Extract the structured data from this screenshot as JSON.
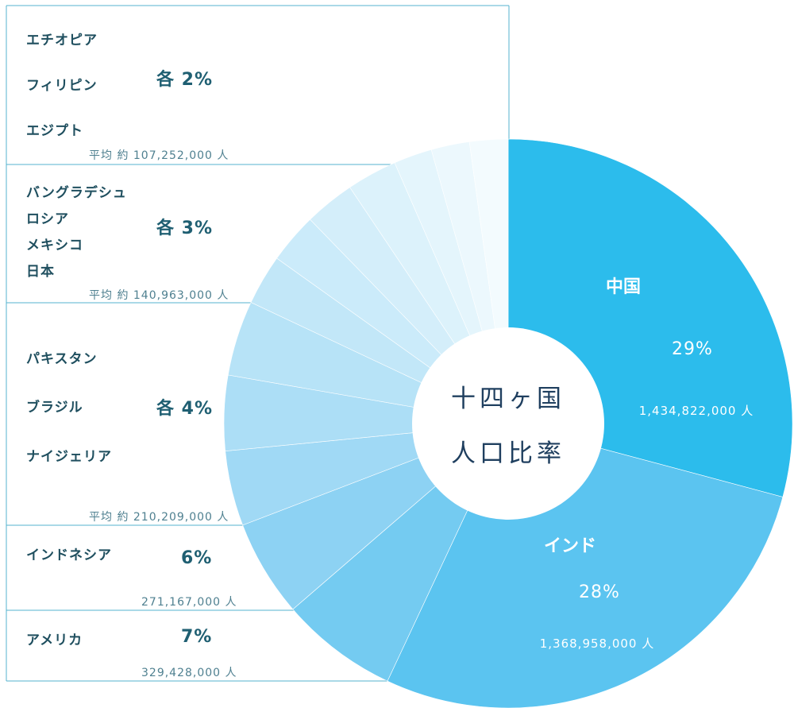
{
  "center_title": [
    "十四ヶ国",
    "人口比率"
  ],
  "groups": [
    {
      "countries": [
        "エチオピア",
        "フィリピン",
        "エジプト"
      ],
      "pct_label": "各 2%",
      "sub_label": "平均 約 107,252,000 人"
    },
    {
      "countries": [
        "バングラデシュ",
        "ロシア",
        "メキシコ",
        "日本"
      ],
      "pct_label": "各 3%",
      "sub_label": "平均 約 140,963,000 人"
    },
    {
      "countries": [
        "パキスタン",
        "ブラジル",
        "ナイジェリア"
      ],
      "pct_label": "各 4%",
      "sub_label": "平均 約 210,209,000 人"
    },
    {
      "countries": [
        "インドネシア"
      ],
      "pct_label": "6%",
      "sub_label": "271,167,000 人"
    },
    {
      "countries": [
        "アメリカ"
      ],
      "pct_label": "7%",
      "sub_label": "329,428,000 人"
    }
  ],
  "slice_labels": [
    {
      "name": "中国",
      "pct": "29%",
      "pop": "1,434,822,000 人"
    },
    {
      "name": "インド",
      "pct": "28%",
      "pop": "1,368,958,000 人"
    }
  ],
  "chart_data": {
    "type": "pie",
    "donut": true,
    "categories": [
      "中国",
      "インド",
      "アメリカ",
      "インドネシア",
      "パキスタン",
      "ブラジル",
      "ナイジェリア",
      "バングラデシュ",
      "ロシア",
      "メキシコ",
      "日本",
      "エチオピア",
      "フィリピン",
      "エジプト"
    ],
    "values": [
      1434822000,
      1368958000,
      329428000,
      271167000,
      210209000,
      210209000,
      210209000,
      140963000,
      140963000,
      140963000,
      140963000,
      107252000,
      107252000,
      107252000
    ],
    "colors": [
      "#2cbcec",
      "#5bc4f0",
      "#74cbf1",
      "#8dd2f3",
      "#a0d9f5",
      "#acdef6",
      "#b7e3f7",
      "#c2e7f8",
      "#cbebfa",
      "#d4eefa",
      "#dcf2fb",
      "#e4f5fc",
      "#ecf8fd",
      "#f3fbfe"
    ]
  }
}
